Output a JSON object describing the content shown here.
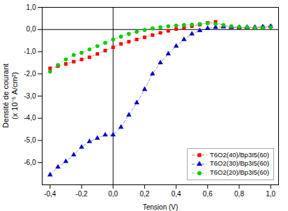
{
  "chart_data": {
    "type": "line",
    "xlabel": "Tension (V)",
    "ylabel": "Densité de courant\n(x 10⁻⁵ A/cm²)",
    "x": [
      -0.4,
      -0.35,
      -0.3,
      -0.25,
      -0.2,
      -0.15,
      -0.1,
      -0.05,
      0.0,
      0.05,
      0.1,
      0.15,
      0.2,
      0.25,
      0.3,
      0.35,
      0.4,
      0.45,
      0.5,
      0.55,
      0.6,
      0.65,
      0.7,
      0.75,
      0.8,
      0.85,
      0.9,
      0.95,
      1.0
    ],
    "series": [
      {
        "name": "T6O2(40)/Bp3I5(60)",
        "color": "#ff0000",
        "marker": "square",
        "line_style": "dashed",
        "values": [
          -1.75,
          -1.65,
          -1.55,
          -1.45,
          -1.35,
          -1.25,
          -1.1,
          -0.95,
          -0.8,
          -0.65,
          -0.55,
          -0.45,
          -0.35,
          -0.25,
          -0.15,
          -0.06,
          0.02,
          0.08,
          0.15,
          0.22,
          0.3,
          0.35,
          0.18,
          0.1,
          0.08,
          0.08,
          0.08,
          0.1,
          0.13
        ]
      },
      {
        "name": "T6O2(30)/Bp3I5(60)",
        "color": "#0000cc",
        "marker": "triangle",
        "line_style": "dashed",
        "values": [
          -6.55,
          -6.2,
          -5.95,
          -5.65,
          -5.3,
          -5.05,
          -4.9,
          -4.75,
          -4.75,
          -4.4,
          -3.85,
          -3.3,
          -2.7,
          -2.0,
          -1.5,
          -1.1,
          -0.75,
          -0.45,
          -0.2,
          -0.05,
          0.05,
          0.1,
          0.12,
          0.1,
          0.1,
          0.1,
          0.1,
          0.12,
          0.15
        ]
      },
      {
        "name": "T6O2(20)/Bp3I5(60)",
        "color": "#00cc00",
        "marker": "circle",
        "line_style": "dashed",
        "values": [
          -1.9,
          -1.6,
          -1.35,
          -1.15,
          -1.05,
          -0.9,
          -0.75,
          -0.6,
          -0.45,
          -0.32,
          -0.2,
          -0.1,
          -0.02,
          0.05,
          0.1,
          0.15,
          0.18,
          0.2,
          0.22,
          0.25,
          0.28,
          0.25,
          0.2,
          0.15,
          0.12,
          0.1,
          0.08,
          0.08,
          0.1
        ]
      }
    ],
    "xlim": [
      -0.45,
      1.05
    ],
    "ylim": [
      -7,
      1
    ],
    "xticks": [
      {
        "value": -0.4,
        "label": "-0,4"
      },
      {
        "value": -0.2,
        "label": "-0,2"
      },
      {
        "value": 0.0,
        "label": "0,0"
      },
      {
        "value": 0.2,
        "label": "0,2"
      },
      {
        "value": 0.4,
        "label": "0,4"
      },
      {
        "value": 0.6,
        "label": "0,6"
      },
      {
        "value": 0.8,
        "label": "0,8"
      },
      {
        "value": 1.0,
        "label": "1,0"
      }
    ],
    "yticks": [
      {
        "value": -6,
        "label": "-6,0"
      },
      {
        "value": -5,
        "label": "-5,0"
      },
      {
        "value": -4,
        "label": "-4,0"
      },
      {
        "value": -3,
        "label": "-3,0"
      },
      {
        "value": -2,
        "label": "-2,0"
      },
      {
        "value": -1,
        "label": "-1,0"
      },
      {
        "value": 0,
        "label": "0,0"
      },
      {
        "value": 1,
        "label": "1,0"
      }
    ],
    "legend": "lower right",
    "hline_y": 0,
    "vline_x": 0
  }
}
